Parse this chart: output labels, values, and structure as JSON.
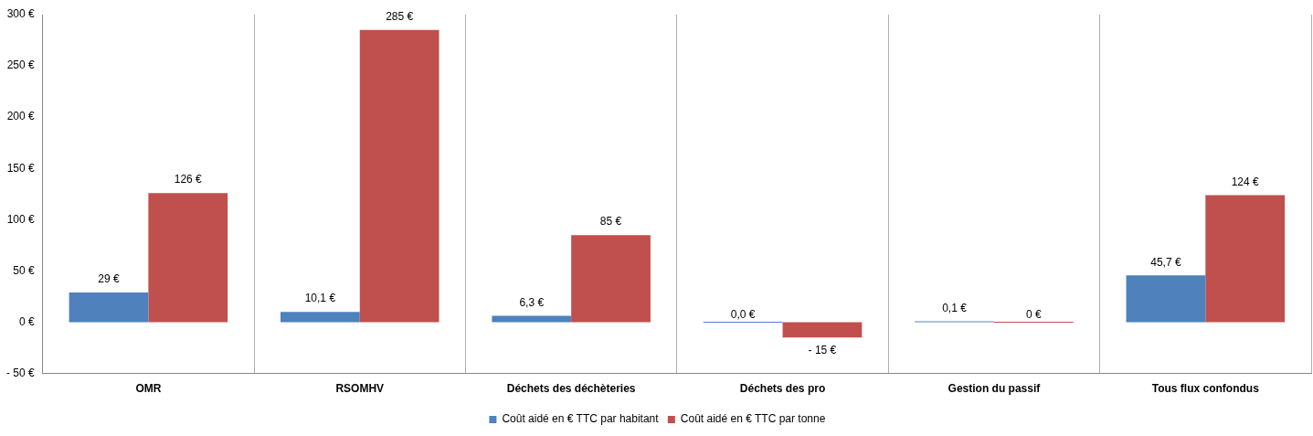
{
  "chart_data": {
    "type": "bar",
    "categories": [
      "OMR",
      "RSOMHV",
      "Déchets des déchèteries",
      "Déchets des pro",
      "Gestion du passif",
      "Tous flux confondus"
    ],
    "series": [
      {
        "name": "Coût aidé en € TTC par habitant",
        "color": "#4f81bd",
        "values": [
          29,
          10.1,
          6.3,
          0,
          0.1,
          45.7
        ],
        "value_labels": [
          "29 €",
          "10,1 €",
          "6,3 €",
          "0,0 €",
          "0,1 €",
          "45,7 €"
        ]
      },
      {
        "name": "Coût aidé en € TTC par tonne",
        "color": "#c0504d",
        "values": [
          126,
          285,
          85,
          -15,
          0,
          124
        ],
        "value_labels": [
          "126 €",
          "285 €",
          "85 €",
          "- 15 €",
          "0 €",
          "124 €"
        ]
      }
    ],
    "ylim": [
      -50,
      300
    ],
    "yticks": [
      {
        "value": -50,
        "label": "- 50 €"
      },
      {
        "value": 0,
        "label": "0 €"
      },
      {
        "value": 50,
        "label": "50 €"
      },
      {
        "value": 100,
        "label": "100 €"
      },
      {
        "value": 150,
        "label": "150 €"
      },
      {
        "value": 200,
        "label": "200 €"
      },
      {
        "value": 250,
        "label": "250 €"
      },
      {
        "value": 300,
        "label": "300 €"
      }
    ],
    "grid": "x",
    "legend": "bottom"
  }
}
